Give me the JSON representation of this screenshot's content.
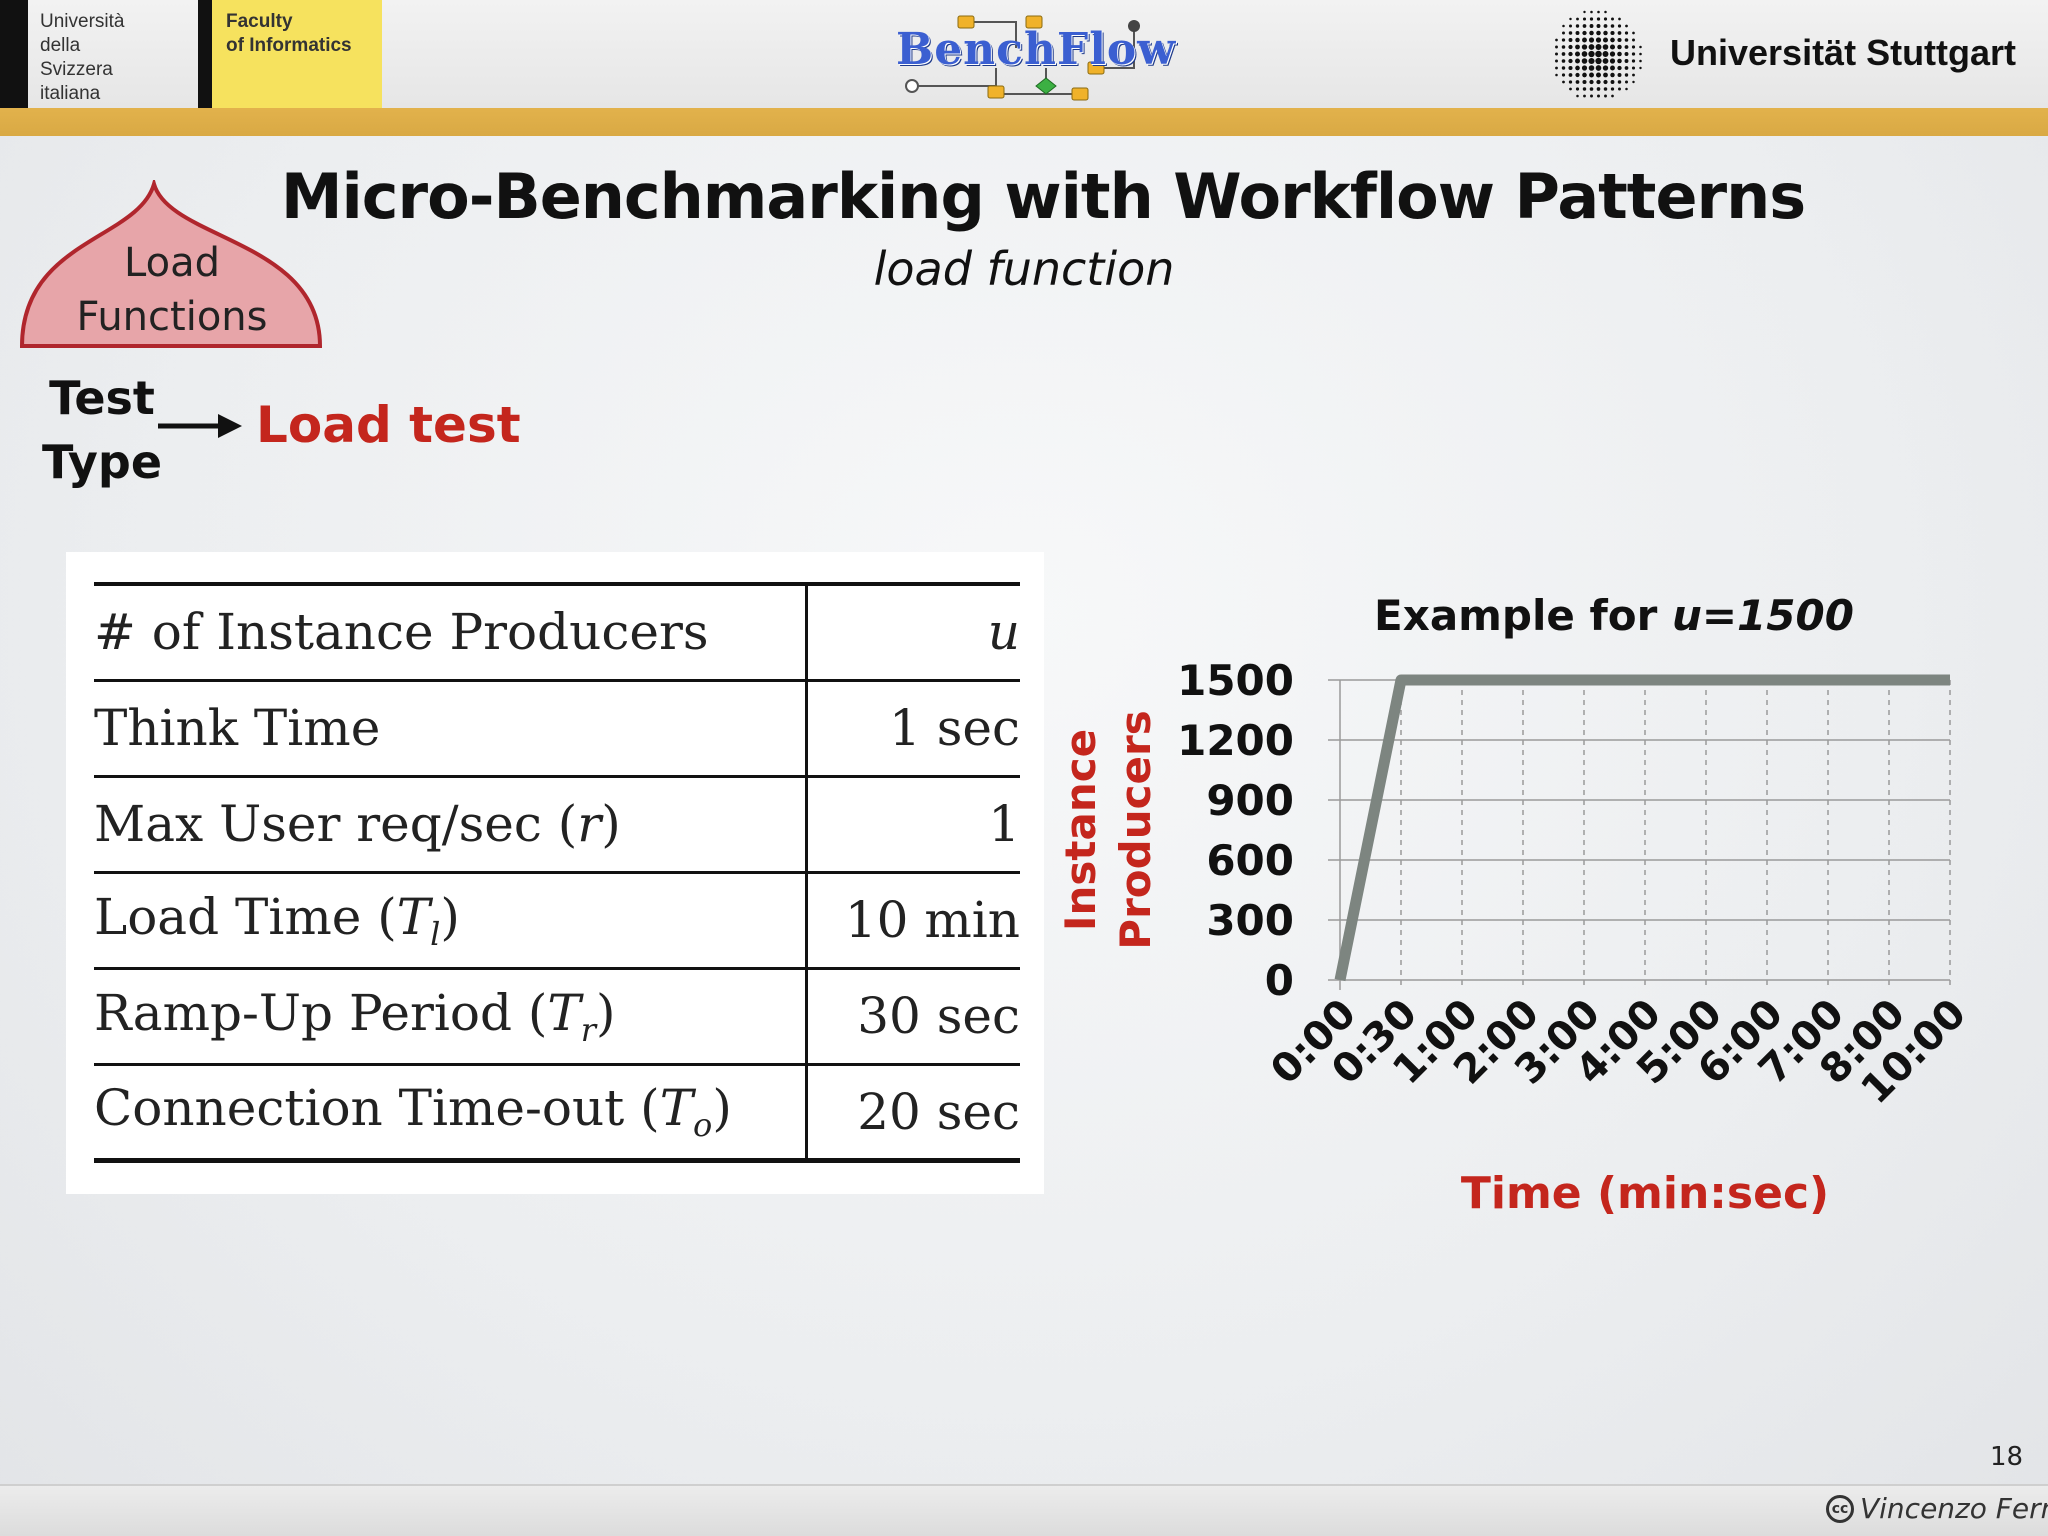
{
  "header": {
    "usi_lines": [
      "Università",
      "della",
      "Svizzera",
      "italiana"
    ],
    "faculty_lines": [
      "Faculty",
      "of Informatics"
    ],
    "center_logo_text": "BenchFlow",
    "right_logo_text": "Universität Stuttgart"
  },
  "slide": {
    "title": "Micro-Benchmarking with Workflow Patterns",
    "subtitle": "load function",
    "badge_lines": [
      "Load",
      "Functions"
    ],
    "test_type_lines": [
      "Test",
      "Type"
    ],
    "test_type_value": "Load test"
  },
  "table": {
    "rows": [
      {
        "label": "# of Instance Producers",
        "label_symbol": "",
        "value": "u"
      },
      {
        "label": "Think Time",
        "label_symbol": "",
        "value": "1 sec"
      },
      {
        "label": "Max User req/sec (",
        "label_symbol": "r",
        "label_close": ")",
        "value": "1"
      },
      {
        "label": "Load Time (",
        "label_symbol": "T",
        "label_sub": "l",
        "label_close": ")",
        "value": "10 min"
      },
      {
        "label": "Ramp-Up Period (",
        "label_symbol": "T",
        "label_sub": "r",
        "label_close": ")",
        "value": "30 sec"
      },
      {
        "label": "Connection Time-out (",
        "label_symbol": "T",
        "label_sub": "o",
        "label_close": ")",
        "value": "20 sec"
      }
    ]
  },
  "chart_data": {
    "type": "line",
    "title_prefix": "Example for ",
    "title_emph": "u=1500",
    "xlabel": "Time (min:sec)",
    "ylabel_lines": [
      "Instance",
      "Producers"
    ],
    "x_tick_labels": [
      "0:00",
      "0:30",
      "1:00",
      "2:00",
      "3:00",
      "4:00",
      "5:00",
      "6:00",
      "7:00",
      "8:00",
      "10:00"
    ],
    "y_tick_labels": [
      "0",
      "300",
      "600",
      "900",
      "1200",
      "1500"
    ],
    "ylim": [
      0,
      1500
    ],
    "grid": true,
    "series": [
      {
        "x_category_index": [
          0,
          1,
          2,
          3,
          4,
          5,
          6,
          7,
          8,
          9,
          10
        ],
        "values": [
          0,
          1500,
          1500,
          1500,
          1500,
          1500,
          1500,
          1500,
          1500,
          1500,
          1500
        ],
        "color": "#7d8580"
      }
    ]
  },
  "footer": {
    "page_number": "18",
    "author": "Vincenzo Ferme",
    "license_icon": "cc-icon"
  }
}
